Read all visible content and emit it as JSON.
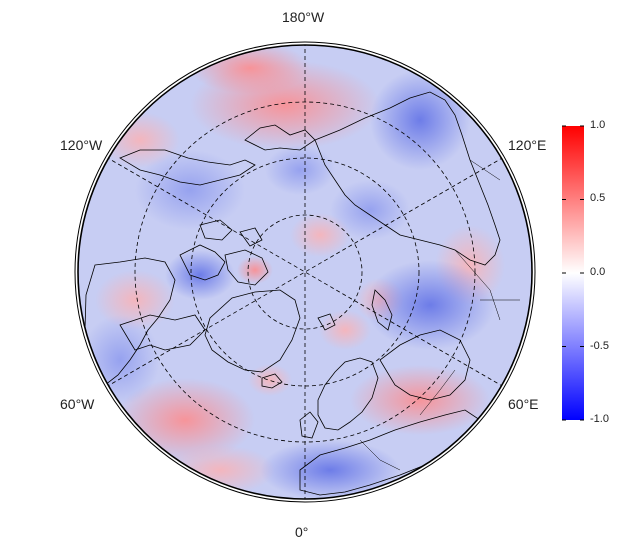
{
  "map": {
    "projection": "north polar stereographic",
    "center": "North Pole",
    "longitude_labels": {
      "top": "180°W",
      "bottom": "0°",
      "upper_left": "120°W",
      "upper_right": "120°E",
      "lower_left": "60°W",
      "lower_right": "60°E"
    },
    "graticule": {
      "style": "dashed",
      "color": "#000000"
    },
    "coastline_color": "#000000"
  },
  "colorbar": {
    "min": -1.0,
    "max": 1.0,
    "ticks": [
      "1.0",
      "0.5",
      "0.0",
      "-0.5",
      "-1.0"
    ],
    "colors": {
      "high": "#ff0000",
      "mid": "#ffffff",
      "low": "#0000ff"
    }
  }
}
